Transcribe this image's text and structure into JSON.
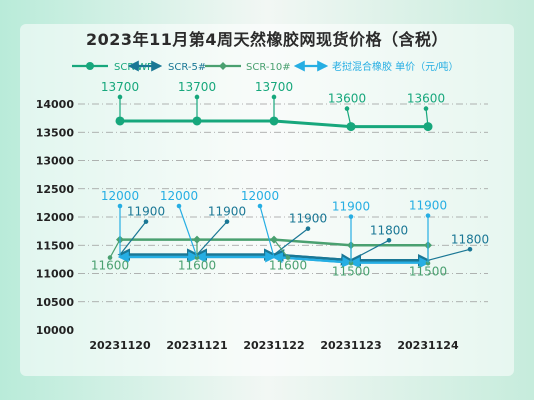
{
  "chart_data": {
    "type": "line",
    "title": "2023年11月第4周天然橡胶网现货价格（含税）",
    "categories": [
      "20231120",
      "20231121",
      "20231122",
      "20231123",
      "20231124"
    ],
    "series": [
      {
        "name": "SCR-WF",
        "values": [
          13700,
          13700,
          13700,
          13600,
          13600
        ],
        "color": "#17a77c"
      },
      {
        "name": "SCR-5#",
        "values": [
          11900,
          11900,
          11900,
          11800,
          11800
        ],
        "color": "#1a7795"
      },
      {
        "name": "SCR-10#",
        "values": [
          11600,
          11600,
          11600,
          11500,
          11500
        ],
        "color": "#4aa070"
      },
      {
        "name": "老挝混合橡胶 单价（元/吨）",
        "values": [
          12000,
          12000,
          12000,
          11900,
          11900
        ],
        "color": "#26aee3"
      }
    ],
    "yticks": [
      10000,
      10500,
      11000,
      11500,
      12000,
      12500,
      13000,
      13500,
      14000
    ],
    "ylim": [
      10000,
      14000
    ],
    "grid": "horizontal dash-dot",
    "legend_position": "top"
  }
}
